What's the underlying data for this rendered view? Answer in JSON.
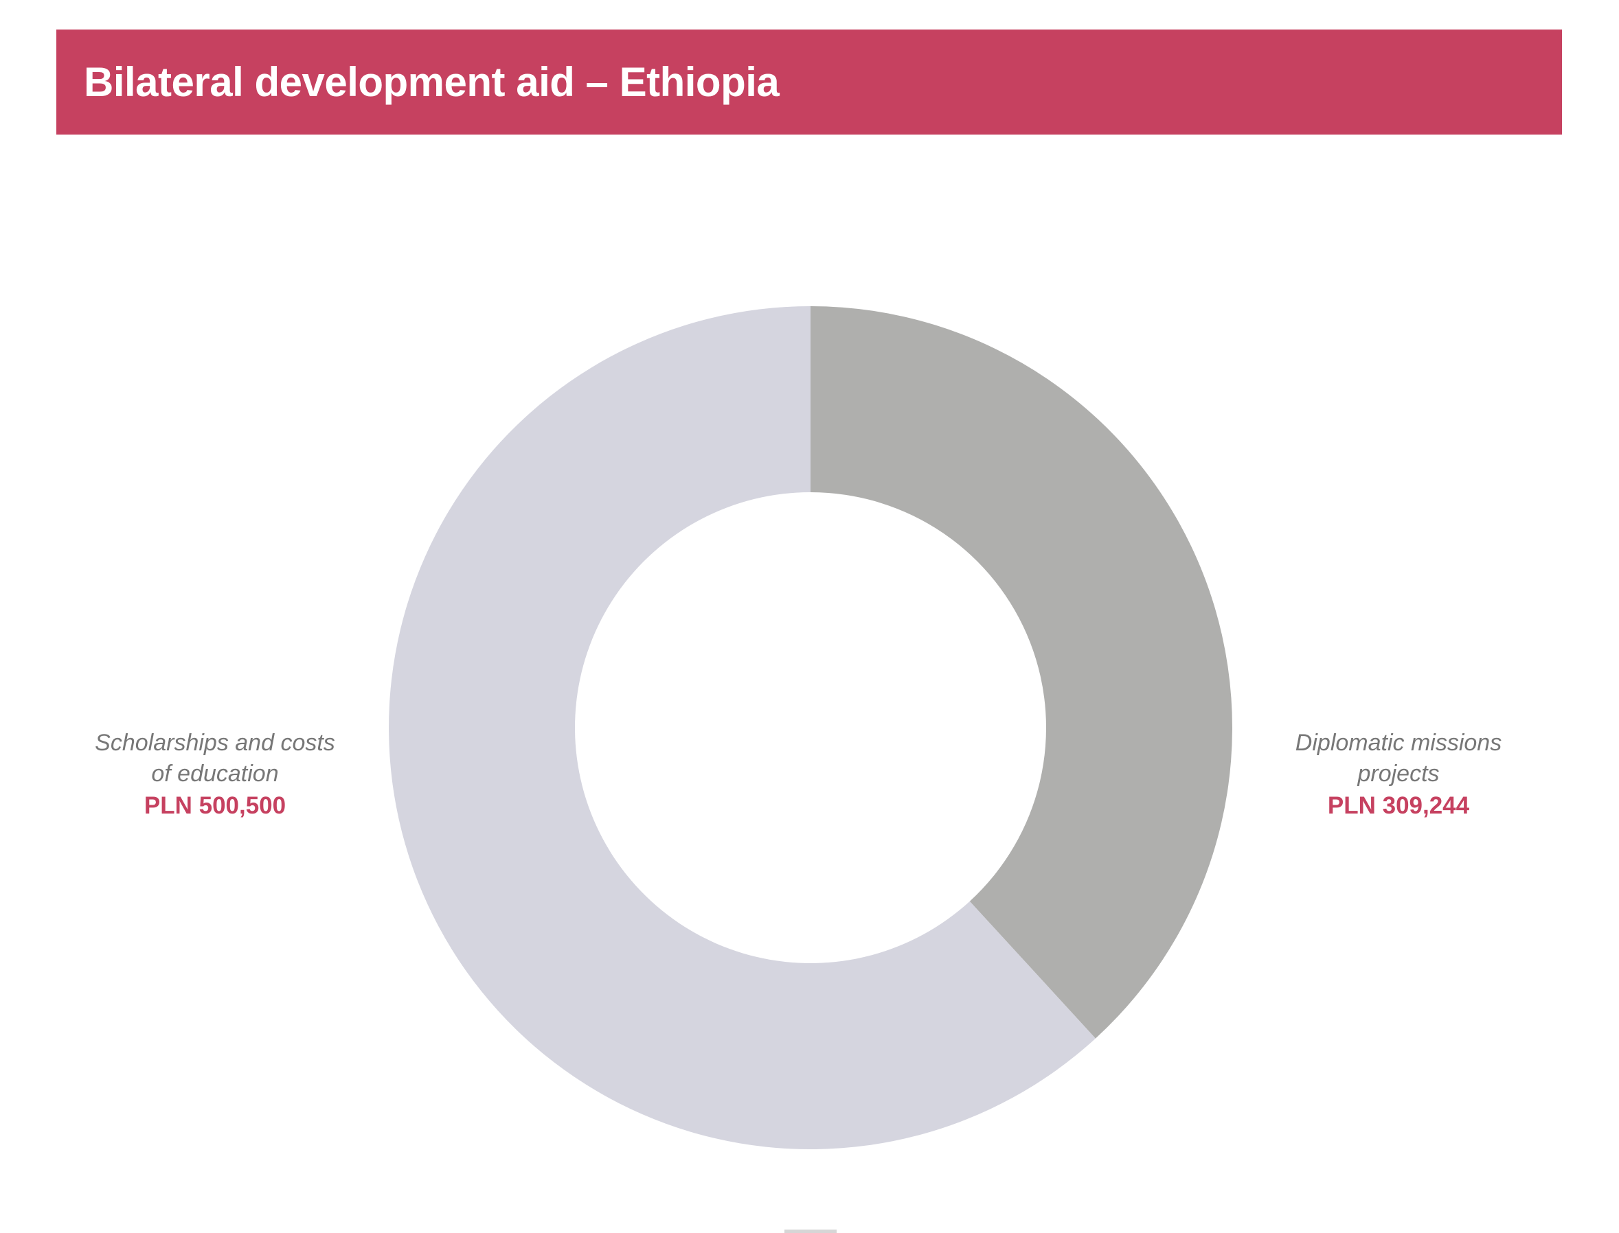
{
  "chart_data": {
    "type": "pie",
    "variant": "donut",
    "title": "Bilateral development aid – Ethiopia",
    "currency": "PLN",
    "slices": [
      {
        "label_lines": [
          "Scholarships and costs",
          "of education"
        ],
        "value": 500500,
        "value_label": "PLN 500,500",
        "color": "#d5d5df"
      },
      {
        "label_lines": [
          "Diplomatic missions",
          "projects"
        ],
        "value": 309244,
        "value_label": "PLN 309,244",
        "color": "#afafad"
      }
    ],
    "legend": "none"
  },
  "colors": {
    "accent": "#c64160",
    "label_text": "#777777",
    "value_text": "#c64160",
    "background": "#ffffff"
  }
}
